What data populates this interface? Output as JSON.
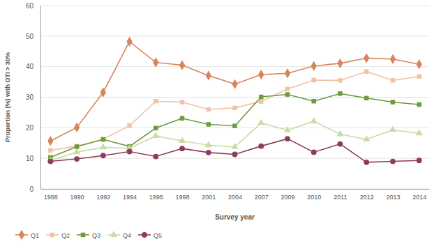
{
  "chart_data": {
    "type": "line",
    "x_label": "Survey year",
    "y_label": "Proportion (%) with OTI > 30%",
    "categories": [
      "1988",
      "1990",
      "1992",
      "1994",
      "1996",
      "1998",
      "2001",
      "2004",
      "2007",
      "2009",
      "2010",
      "2011",
      "2012",
      "2013",
      "2014"
    ],
    "series": [
      {
        "name": "Q1",
        "color": "#d8845c",
        "marker": "diamond",
        "values": [
          15.7,
          20.1,
          31.6,
          48.2,
          41.4,
          40.5,
          37.1,
          34.3,
          37.4,
          37.8,
          40.2,
          41.1,
          42.8,
          42.5,
          40.8
        ]
      },
      {
        "name": "Q2",
        "color": "#f1c3a6",
        "marker": "square",
        "values": [
          12.6,
          14.0,
          16.2,
          20.7,
          28.7,
          28.4,
          26.0,
          26.5,
          28.6,
          32.7,
          35.6,
          35.5,
          38.4,
          35.5,
          36.8
        ]
      },
      {
        "name": "Q3",
        "color": "#6b9b3d",
        "marker": "square",
        "values": [
          10.3,
          13.8,
          16.2,
          13.9,
          19.9,
          23.1,
          21.1,
          20.6,
          30.1,
          30.9,
          28.7,
          31.2,
          29.7,
          28.4,
          27.6
        ]
      },
      {
        "name": "Q4",
        "color": "#c9dca7",
        "marker": "triangle",
        "values": [
          9.3,
          12.0,
          13.6,
          13.3,
          17.3,
          15.7,
          14.3,
          13.7,
          21.6,
          19.2,
          22.1,
          17.9,
          16.2,
          19.3,
          18.2
        ]
      },
      {
        "name": "Q5",
        "color": "#8e3c5d",
        "marker": "circle",
        "values": [
          9.0,
          9.8,
          10.9,
          12.2,
          10.6,
          13.2,
          11.9,
          11.3,
          14.0,
          16.4,
          12.0,
          14.7,
          8.7,
          9.0,
          9.3
        ]
      }
    ],
    "ylim": [
      0,
      60
    ],
    "yticks": [
      0,
      10,
      20,
      30,
      40,
      50,
      60
    ],
    "grid": true,
    "legend": "bottom"
  }
}
